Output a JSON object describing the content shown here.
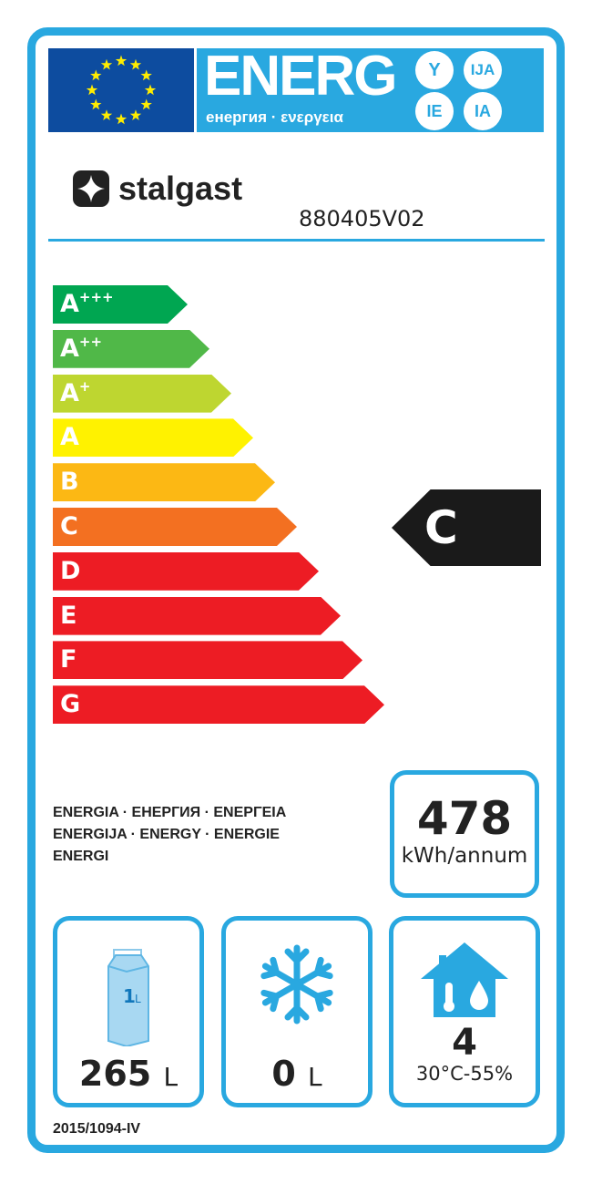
{
  "header": {
    "energy_title": "ENERG",
    "energy_subtitle": "енергия · ενεργεια",
    "suffixes": [
      "Y",
      "IJA",
      "IE",
      "IA"
    ]
  },
  "brand": {
    "name": "stalgast",
    "model": "880405V02"
  },
  "scale": {
    "classes": [
      {
        "letter": "A",
        "sup": "+++",
        "color": "#00a651"
      },
      {
        "letter": "A",
        "sup": "++",
        "color": "#50b848"
      },
      {
        "letter": "A",
        "sup": "+",
        "color": "#bed630"
      },
      {
        "letter": "A",
        "sup": "",
        "color": "#fff200"
      },
      {
        "letter": "B",
        "sup": "",
        "color": "#fcb814"
      },
      {
        "letter": "C",
        "sup": "",
        "color": "#f37021"
      },
      {
        "letter": "D",
        "sup": "",
        "color": "#ed1c24"
      },
      {
        "letter": "E",
        "sup": "",
        "color": "#ed1c24"
      },
      {
        "letter": "F",
        "sup": "",
        "color": "#ed1c24"
      },
      {
        "letter": "G",
        "sup": "",
        "color": "#ed1c24"
      }
    ],
    "current_class": "C"
  },
  "energy": {
    "languages": [
      "ENERGIA · ЕНЕРГИЯ · ΕΝΕΡΓΕΙΑ",
      "ENERGIJA · ENERGY · ENERGIE",
      "ENERGI"
    ],
    "value": "478",
    "unit": "kWh/annum"
  },
  "capacities": {
    "chilled": {
      "value": "265",
      "unit": "L",
      "icon_label": "1L"
    },
    "frozen": {
      "value": "0",
      "unit": "L"
    },
    "climate": {
      "value": "4",
      "conditions": "30°C-55%"
    }
  },
  "regulation": "2015/1094-IV",
  "colors": {
    "accent": "#29a8e0",
    "flag": "#0d4c9f",
    "star": "#ffed00"
  }
}
